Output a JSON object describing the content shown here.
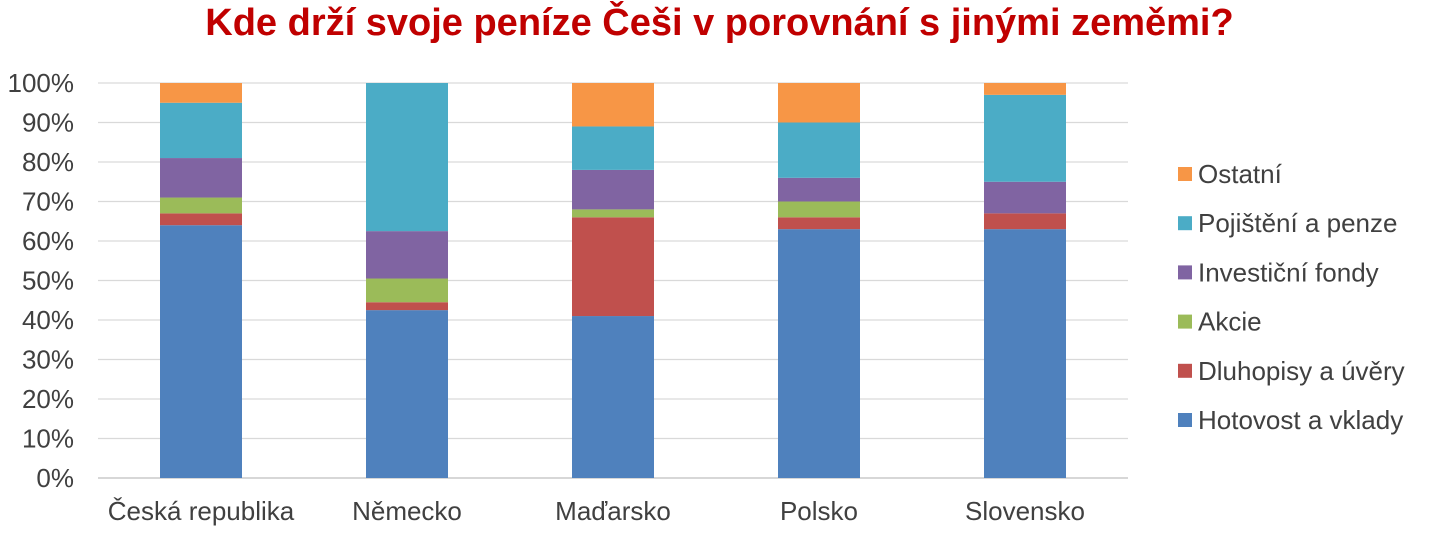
{
  "chart_data": {
    "type": "bar",
    "stacked": true,
    "title": "Kde drží svoje peníze Češi v porovnání s jinými zeměmi?",
    "title_color": "#C00000",
    "xlabel": "",
    "ylabel": "",
    "ylim": [
      0,
      100
    ],
    "yticks": [
      "0%",
      "10%",
      "20%",
      "30%",
      "40%",
      "50%",
      "60%",
      "70%",
      "80%",
      "90%",
      "100%"
    ],
    "grid": true,
    "legend_position": "right",
    "categories": [
      "Česká republika",
      "Německo",
      "Maďarsko",
      "Polsko",
      "Slovensko"
    ],
    "series": [
      {
        "name": "Hotovost a vklady",
        "color": "#4F81BD",
        "values": [
          64,
          42.5,
          41,
          63,
          63
        ]
      },
      {
        "name": "Dluhopisy a úvěry",
        "color": "#C0504D",
        "values": [
          3,
          2,
          25,
          3,
          4
        ]
      },
      {
        "name": "Akcie",
        "color": "#9BBB59",
        "values": [
          4,
          6,
          2,
          4,
          0
        ]
      },
      {
        "name": "Investiční fondy",
        "color": "#8064A2",
        "values": [
          10,
          12,
          10,
          6,
          8
        ]
      },
      {
        "name": "Pojištění a penze",
        "color": "#4BACC6",
        "values": [
          14,
          37.5,
          11,
          14,
          22
        ]
      },
      {
        "name": "Ostatní",
        "color": "#F79646",
        "values": [
          5,
          0,
          11,
          10,
          3
        ]
      }
    ]
  }
}
